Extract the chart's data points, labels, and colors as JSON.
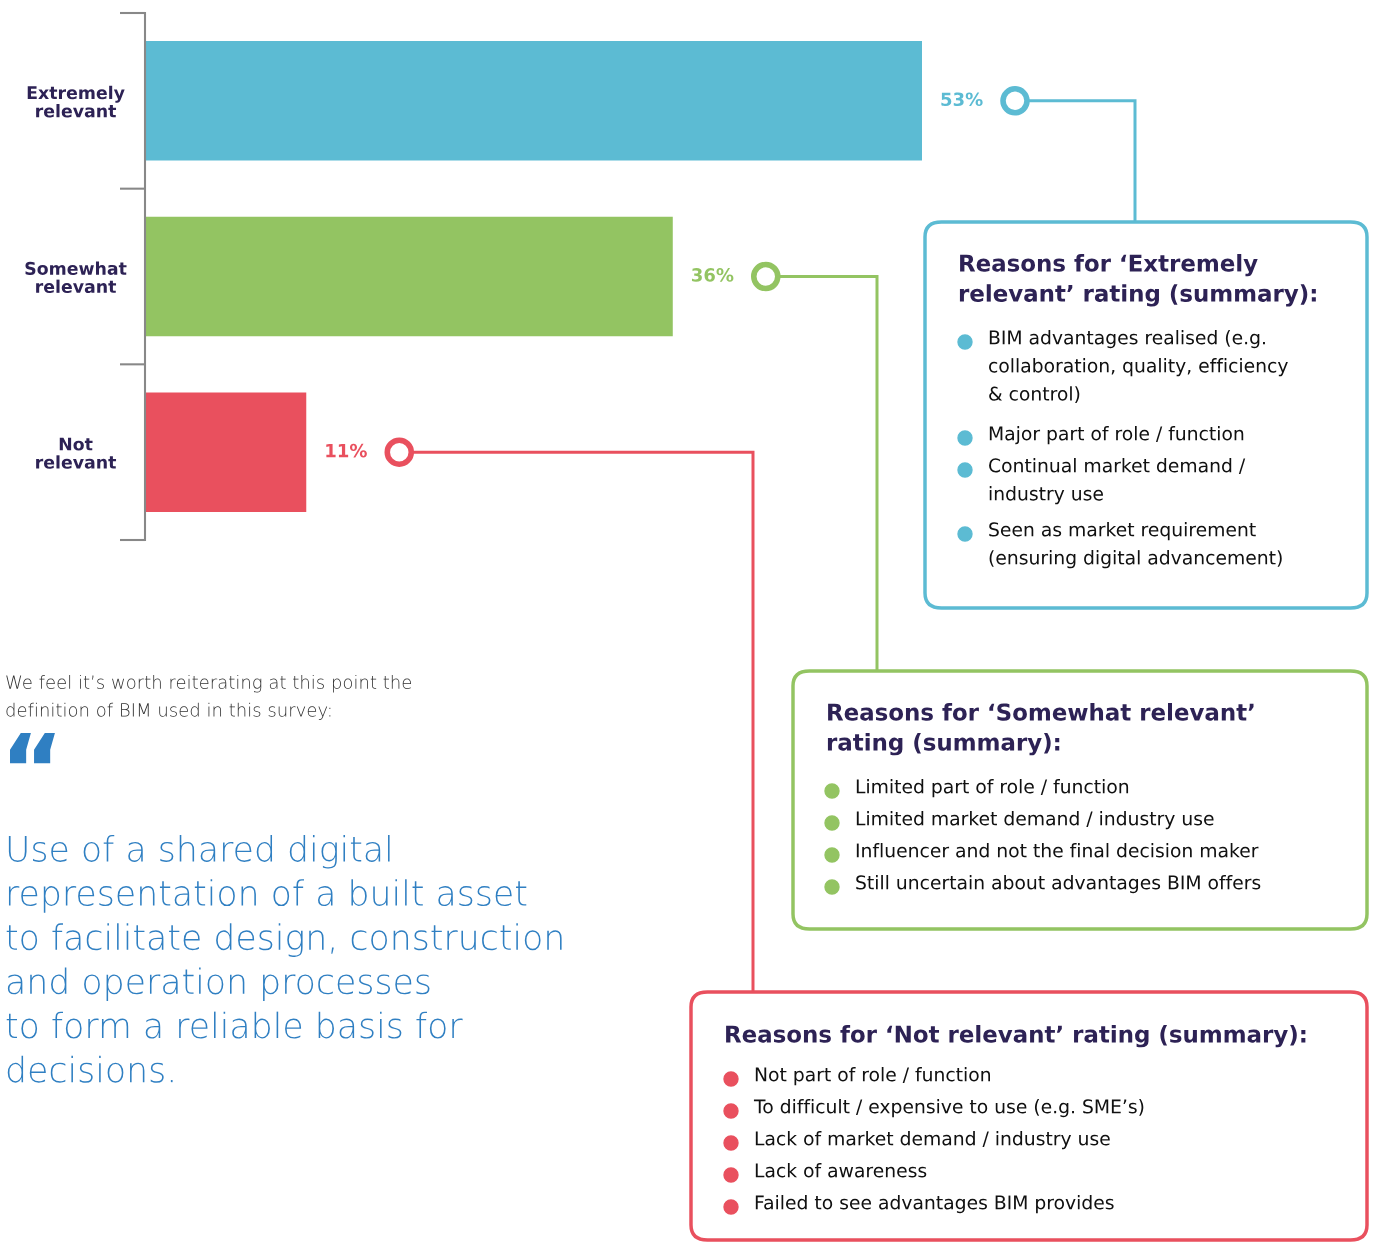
{
  "chart_data": {
    "type": "bar",
    "orientation": "horizontal",
    "tick_labels": "y",
    "categories": [
      "Extremely\nrelevant",
      "Somewhat\nrelevant",
      "Not\nrelevant"
    ],
    "values": [
      53,
      36,
      11
    ],
    "colors": [
      "#5cbbd3",
      "#93c462",
      "#e9505e"
    ],
    "value_labels": [
      "53%",
      "36%",
      "11%"
    ],
    "annotations": [
      "We feel it’s worth reiterating at this point the\ndefinition of BIM used in this survey:",
      "“",
      "Use of a shared digital\nrepresentation of a built asset\nto facilitate design, construction\nand operation processes\nto form a reliable basis for\ndecisions.",
      "Reasons for ‘Extremely\nrelevant’ rating (summary):",
      "BIM advantages realised (e.g.\ncollaboration, quality, efficiency\n& control)",
      "Major part of role / function",
      "Continual market demand /\nindustry use",
      "Seen as market requirement\n(ensuring digital advancement)",
      "Reasons for ‘Somewhat relevant’\nrating (summary):",
      "Limited part of role / function",
      "Limited market demand / industry use",
      "Influencer and not the final decision maker",
      "Still uncertain about advantages BIM offers",
      "Reasons for ‘Not relevant’ rating (summary):",
      "Not part of role / function",
      "To difficult / expensive to use (e.g. SME’s)",
      "Lack of market demand / industry use",
      "Lack of awareness",
      "Failed to see advantages BIM provides"
    ]
  }
}
